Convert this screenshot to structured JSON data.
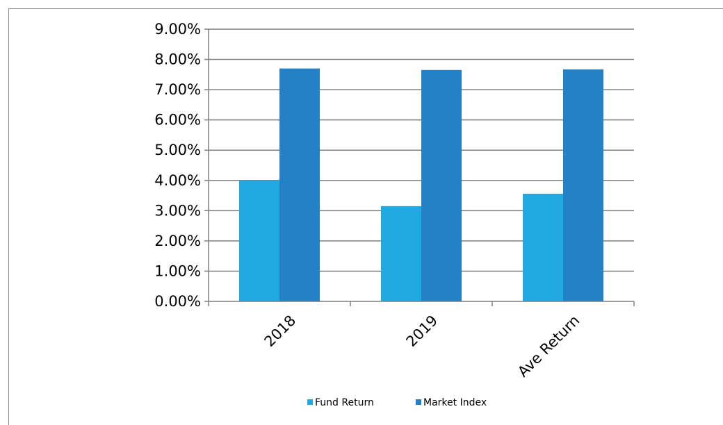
{
  "chart_data": {
    "type": "bar",
    "title": "",
    "xlabel": "",
    "ylabel": "",
    "categories": [
      "2018",
      "2019",
      "Ave Return"
    ],
    "series": [
      {
        "name": "Fund Return",
        "values": [
          4.0,
          3.15,
          3.56
        ],
        "color": "#21a9e1"
      },
      {
        "name": "Market Index",
        "values": [
          7.7,
          7.65,
          7.67
        ],
        "color": "#2581c6"
      }
    ],
    "ylim": [
      0,
      9
    ],
    "yticks": [
      0,
      1,
      2,
      3,
      4,
      5,
      6,
      7,
      8,
      9
    ],
    "ytick_labels": [
      "0.00%",
      "1.00%",
      "2.00%",
      "3.00%",
      "4.00%",
      "5.00%",
      "6.00%",
      "7.00%",
      "8.00%",
      "9.00%"
    ],
    "grid": true,
    "legend_position": "bottom",
    "colors": {
      "grid": "#7f7f7f",
      "axis": "#7f7f7f",
      "frame": "#8c8c8c"
    }
  }
}
